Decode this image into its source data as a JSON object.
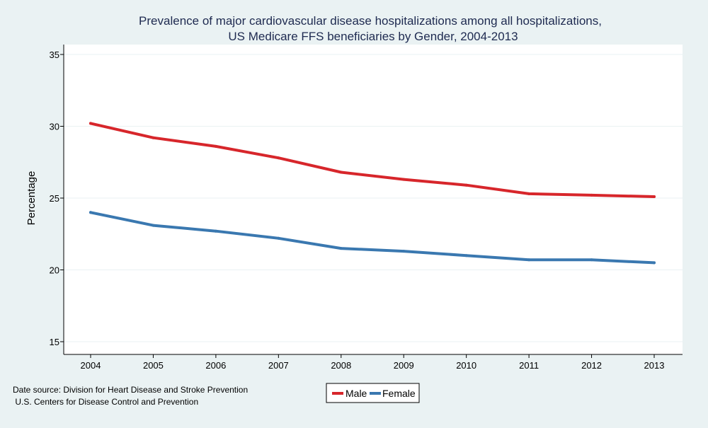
{
  "chart_data": {
    "type": "line",
    "title_lines": [
      "Prevalence of major cardiovascular disease hospitalizations among all hospitalizations,",
      "US Medicare FFS beneficiaries by Gender, 2004-2013"
    ],
    "xlabel": "",
    "ylabel": "Percentage",
    "x": [
      2004,
      2005,
      2006,
      2007,
      2008,
      2009,
      2010,
      2011,
      2012,
      2013
    ],
    "ylim": [
      15,
      35
    ],
    "yticks": [
      15,
      20,
      25,
      30,
      35
    ],
    "grid": true,
    "legend_position": "bottom-center",
    "series": [
      {
        "name": "Male",
        "color": "#d7262b",
        "values": [
          30.2,
          29.2,
          28.6,
          27.8,
          26.8,
          26.3,
          25.9,
          25.3,
          25.2,
          25.1
        ]
      },
      {
        "name": "Female",
        "color": "#3a78b0",
        "values": [
          24.0,
          23.1,
          22.7,
          22.2,
          21.5,
          21.3,
          21.0,
          20.7,
          20.7,
          20.5
        ]
      }
    ],
    "source_lines": [
      "Date source: Division for Heart Disease and Stroke Prevention",
      " U.S. Centers for Disease Control and Prevention"
    ],
    "colors": {
      "background": "#eaf2f3",
      "plot_background": "#ffffff",
      "grid": "#eaf2f3",
      "title": "#1e2a50",
      "axis": "#000000"
    }
  }
}
